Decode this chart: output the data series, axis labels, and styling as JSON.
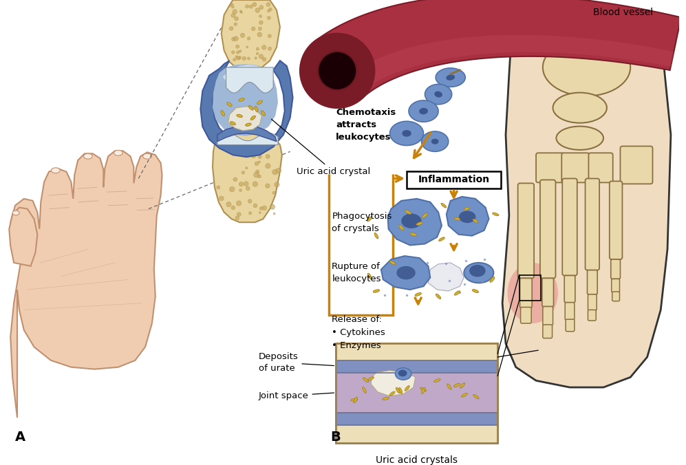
{
  "bg_color": "#ffffff",
  "label_A": "A",
  "label_B": "B",
  "text_uric_acid_crystal": "Uric acid crystal",
  "text_blood_vessel": "Blood vessel",
  "text_chemotaxis": "Chemotaxis\nattracts\nleukocytes",
  "text_inflammation": "Inflammation",
  "text_phagocytosis": "Phagocytosis\nof crystals",
  "text_rupture": "Rupture of\nleukocytes",
  "text_release": "Release of:\n• Cytokines\n• Enzymes",
  "text_deposits": "Deposits\nof urate",
  "text_joint_space": "Joint space",
  "text_uric_acid_crystals_bottom": "Uric acid crystals",
  "colors": {
    "blood_vessel_red": "#a83040",
    "blood_vessel_dark": "#7a1c28",
    "blood_vessel_light": "#c05060",
    "leukocyte_blue": "#7090c8",
    "leukocyte_mid": "#5070a8",
    "leukocyte_dark": "#304880",
    "crystal_gold": "#c8a020",
    "crystal_fill": "#d4b030",
    "bone_color": "#e8d8aa",
    "bone_outline": "#b89858",
    "skin_color": "#f0cdb0",
    "skin_mid": "#e0b898",
    "skin_outline": "#c09070",
    "joint_blue": "#6080b0",
    "joint_light": "#a0b8d8",
    "joint_purple": "#c0a8c8",
    "arrow_orange": "#c8820a",
    "box_orange": "#c8820a",
    "inflammation_red": "#e88090",
    "white": "#ffffff",
    "black": "#111111",
    "gray": "#888888"
  }
}
